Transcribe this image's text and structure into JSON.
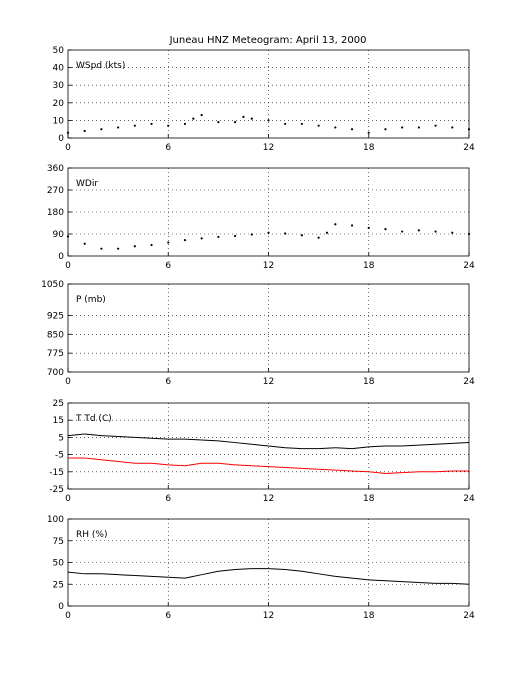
{
  "figure": {
    "title": "Juneau HNZ Meteogram:     April 13, 2000"
  },
  "chart_data": [
    {
      "type": "scatter",
      "label": "WSpd (kts)",
      "xlim": [
        0,
        24
      ],
      "ylim": [
        0,
        50
      ],
      "xticks": [
        0,
        6,
        12,
        18,
        24
      ],
      "yticks": [
        0,
        10,
        20,
        30,
        40,
        50
      ],
      "grid": true,
      "series": [
        {
          "color": "#000000",
          "x": [
            0,
            1,
            2,
            3,
            4,
            5,
            6,
            7,
            7.5,
            8,
            9,
            10,
            10.5,
            11,
            12,
            13,
            14,
            15,
            16,
            17,
            18,
            19,
            20,
            21,
            22,
            23,
            24
          ],
          "y": [
            3,
            4,
            5,
            6,
            7,
            8,
            7,
            8,
            11,
            13,
            9,
            9,
            12,
            11,
            10,
            8,
            8,
            7,
            6,
            5,
            3,
            5,
            6,
            6,
            7,
            6,
            5
          ]
        }
      ]
    },
    {
      "type": "scatter",
      "label": "WDir",
      "xlim": [
        0,
        24
      ],
      "ylim": [
        0,
        360
      ],
      "xticks": [
        0,
        6,
        12,
        18,
        24
      ],
      "yticks": [
        0,
        90,
        180,
        270,
        360
      ],
      "grid": true,
      "series": [
        {
          "color": "#000000",
          "x": [
            0,
            1,
            2,
            3,
            4,
            5,
            6,
            7,
            8,
            9,
            10,
            11,
            12,
            13,
            14,
            15,
            15.5,
            16,
            17,
            18,
            19,
            20,
            21,
            22,
            23,
            24
          ],
          "y": [
            80,
            50,
            30,
            30,
            40,
            45,
            55,
            65,
            72,
            78,
            82,
            88,
            95,
            92,
            85,
            75,
            95,
            130,
            125,
            115,
            110,
            100,
            105,
            100,
            95,
            90
          ]
        }
      ]
    },
    {
      "type": "line",
      "label": "P (mb)",
      "xlim": [
        0,
        24
      ],
      "ylim": [
        700,
        1050
      ],
      "xticks": [
        0,
        6,
        12,
        18,
        24
      ],
      "yticks": [
        700,
        775,
        850,
        925,
        1050
      ],
      "grid": true,
      "series": []
    },
    {
      "type": "line",
      "label": "T Td (C)",
      "xlim": [
        0,
        24
      ],
      "ylim": [
        -25,
        25
      ],
      "xticks": [
        0,
        6,
        12,
        18,
        24
      ],
      "yticks": [
        -25,
        -15,
        -5,
        5,
        15,
        25
      ],
      "grid": true,
      "series": [
        {
          "color": "#000000",
          "x": [
            0,
            1,
            2,
            3,
            4,
            5,
            6,
            7,
            8,
            9,
            10,
            11,
            12,
            13,
            14,
            15,
            16,
            17,
            18,
            19,
            20,
            21,
            22,
            23,
            24
          ],
          "y": [
            6,
            7,
            6,
            5.5,
            5,
            4.5,
            4,
            4,
            3.5,
            3,
            2,
            1,
            0,
            -1,
            -1.5,
            -1.5,
            -1,
            -1.5,
            -0.5,
            0,
            0,
            0.5,
            1,
            1.5,
            2
          ]
        },
        {
          "color": "#ff0000",
          "x": [
            0,
            1,
            2,
            3,
            4,
            5,
            6,
            7,
            8,
            9,
            10,
            11,
            12,
            13,
            14,
            15,
            16,
            17,
            18,
            19,
            20,
            21,
            22,
            23,
            24
          ],
          "y": [
            -7,
            -7,
            -8,
            -9,
            -10,
            -10,
            -11,
            -11.5,
            -10,
            -10,
            -11,
            -11.5,
            -12,
            -12.5,
            -13,
            -13.5,
            -14,
            -14.5,
            -15,
            -16,
            -15.5,
            -15,
            -15,
            -14.5,
            -14.5
          ]
        }
      ]
    },
    {
      "type": "line",
      "label": "RH (%)",
      "xlim": [
        0,
        24
      ],
      "ylim": [
        0,
        100
      ],
      "xticks": [
        0,
        6,
        12,
        18,
        24
      ],
      "yticks": [
        0,
        25,
        50,
        75,
        100
      ],
      "grid": true,
      "series": [
        {
          "color": "#000000",
          "x": [
            0,
            1,
            2,
            3,
            4,
            5,
            6,
            7,
            8,
            9,
            10,
            11,
            12,
            13,
            14,
            15,
            16,
            17,
            18,
            19,
            20,
            21,
            22,
            23,
            24
          ],
          "y": [
            39,
            37,
            37,
            36,
            35,
            34,
            33,
            32,
            36,
            40,
            42,
            43,
            43,
            42,
            40,
            37,
            34,
            32,
            30,
            29,
            28,
            27,
            26,
            26,
            25
          ]
        }
      ]
    }
  ]
}
